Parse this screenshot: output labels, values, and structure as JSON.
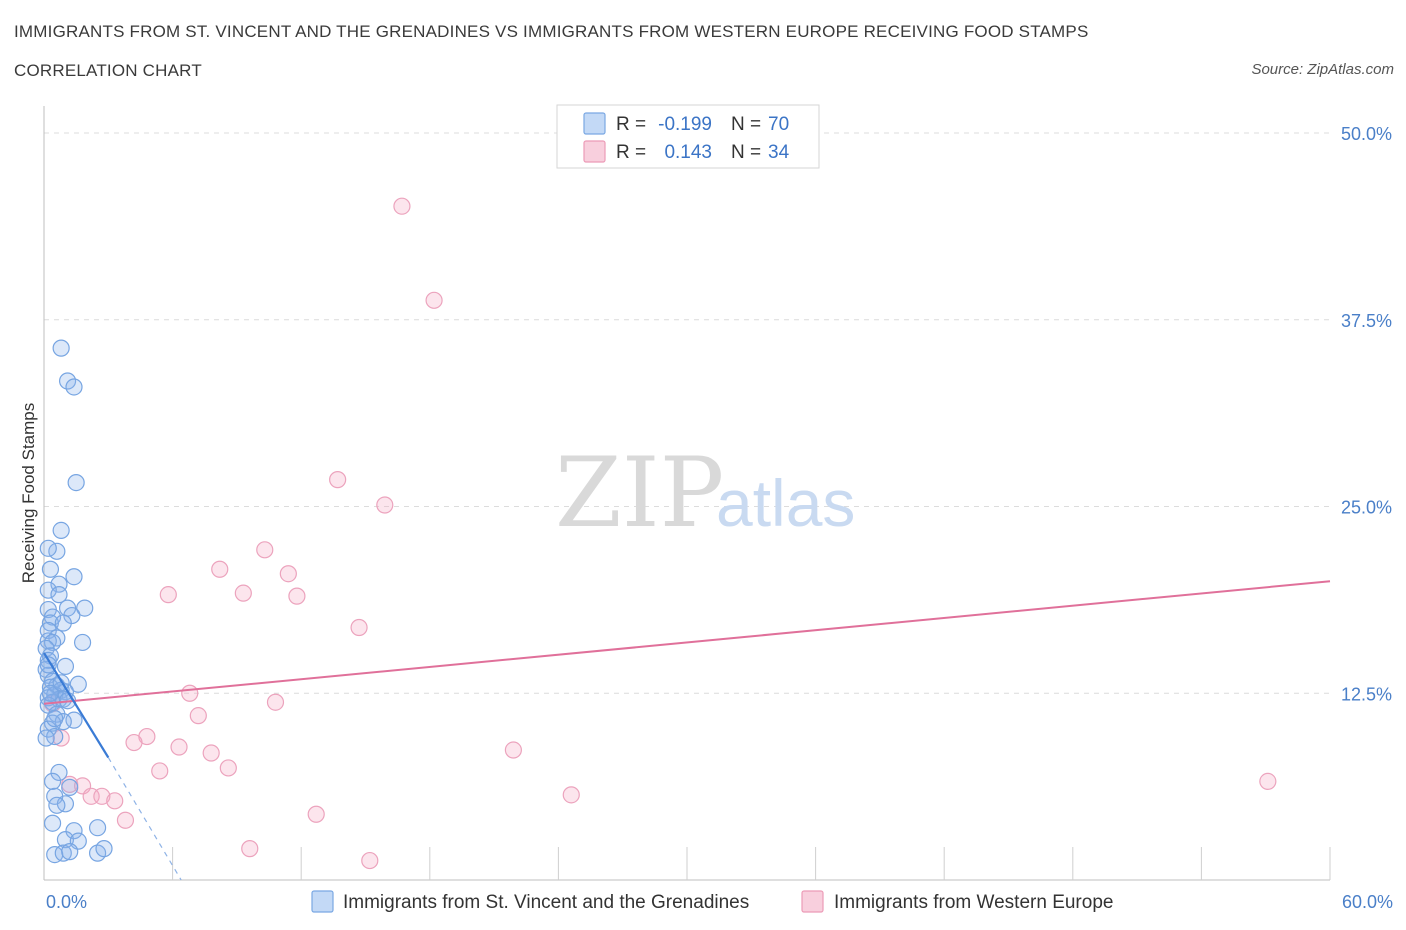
{
  "header": {
    "title": "IMMIGRANTS FROM ST. VINCENT AND THE GRENADINES VS IMMIGRANTS FROM WESTERN EUROPE RECEIVING FOOD STAMPS",
    "subtitle": "CORRELATION CHART",
    "source": "Source: ZipAtlas.com"
  },
  "watermark": {
    "zip": "ZIP",
    "atlas": "atlas"
  },
  "legend": {
    "rows": [
      {
        "r_label": "R =",
        "r_value": "-0.199",
        "n_label": "N =",
        "n_value": "70"
      },
      {
        "r_label": "R =",
        "r_value": "0.143",
        "n_label": "N =",
        "n_value": "34"
      }
    ]
  },
  "chart_data": {
    "type": "scatter",
    "title": "Immigrants from St. Vincent and the Grenadines vs Immigrants from Western Europe Receiving Food Stamps",
    "xlabel": "",
    "ylabel": "Receiving Food Stamps",
    "xlim": [
      0,
      60
    ],
    "ylim": [
      0,
      50
    ],
    "x_tick_labels": [
      "0.0%",
      "60.0%"
    ],
    "y_ticks": [
      12.5,
      25.0,
      37.5,
      50.0
    ],
    "y_tick_labels": [
      "12.5%",
      "25.0%",
      "37.5%",
      "50.0%"
    ],
    "grid": true,
    "colors": {
      "blue": "#6fa3e6",
      "pink": "#eb8fae",
      "blue_line": "#3a7bd5",
      "pink_line": "#e0709a"
    },
    "series": [
      {
        "name": "Immigrants from St. Vincent and the Grenadines",
        "color": "#6fa3e6",
        "trend": {
          "x0": 0,
          "y0": 15.2,
          "x1": 3.0,
          "y1": 8.2,
          "dash_to_x": 6.4,
          "dash_to_y": 0
        },
        "points": [
          [
            0.8,
            35.6
          ],
          [
            1.1,
            33.4
          ],
          [
            1.4,
            33.0
          ],
          [
            1.5,
            26.6
          ],
          [
            0.8,
            23.4
          ],
          [
            0.6,
            22.0
          ],
          [
            0.2,
            22.2
          ],
          [
            0.3,
            20.8
          ],
          [
            1.4,
            20.3
          ],
          [
            0.7,
            19.8
          ],
          [
            0.2,
            19.4
          ],
          [
            0.7,
            19.1
          ],
          [
            1.9,
            18.2
          ],
          [
            1.1,
            18.2
          ],
          [
            0.2,
            18.1
          ],
          [
            0.4,
            17.6
          ],
          [
            1.3,
            17.7
          ],
          [
            0.3,
            17.2
          ],
          [
            0.9,
            17.2
          ],
          [
            0.2,
            16.7
          ],
          [
            0.6,
            16.2
          ],
          [
            0.2,
            16.0
          ],
          [
            0.4,
            15.9
          ],
          [
            1.8,
            15.9
          ],
          [
            0.1,
            15.5
          ],
          [
            0.3,
            15.0
          ],
          [
            0.2,
            14.7
          ],
          [
            1.0,
            14.3
          ],
          [
            0.1,
            14.1
          ],
          [
            0.2,
            13.7
          ],
          [
            0.4,
            13.3
          ],
          [
            0.6,
            13.0
          ],
          [
            1.6,
            13.1
          ],
          [
            0.3,
            12.9
          ],
          [
            0.8,
            12.7
          ],
          [
            1.0,
            12.6
          ],
          [
            0.5,
            12.4
          ],
          [
            0.2,
            12.2
          ],
          [
            0.7,
            12.1
          ],
          [
            0.9,
            12.1
          ],
          [
            0.4,
            11.9
          ],
          [
            0.2,
            11.7
          ],
          [
            0.6,
            11.1
          ],
          [
            1.4,
            10.7
          ],
          [
            0.9,
            10.6
          ],
          [
            0.4,
            10.5
          ],
          [
            0.2,
            10.1
          ],
          [
            0.5,
            9.6
          ],
          [
            0.1,
            9.5
          ],
          [
            0.7,
            7.2
          ],
          [
            0.4,
            6.6
          ],
          [
            1.2,
            6.2
          ],
          [
            0.5,
            5.6
          ],
          [
            1.0,
            5.1
          ],
          [
            0.6,
            5.0
          ],
          [
            0.4,
            3.8
          ],
          [
            2.5,
            3.5
          ],
          [
            1.4,
            3.3
          ],
          [
            1.0,
            2.7
          ],
          [
            1.6,
            2.6
          ],
          [
            0.5,
            1.7
          ],
          [
            0.9,
            1.8
          ],
          [
            1.2,
            1.9
          ],
          [
            2.5,
            1.8
          ],
          [
            2.8,
            2.1
          ],
          [
            0.3,
            12.5
          ],
          [
            0.8,
            13.2
          ],
          [
            0.2,
            14.4
          ],
          [
            1.1,
            12.0
          ],
          [
            0.5,
            10.8
          ]
        ]
      },
      {
        "name": "Immigrants from Western Europe",
        "color": "#eb8fae",
        "trend": {
          "x0": 0,
          "y0": 11.8,
          "x1": 60,
          "y1": 20.0
        },
        "points": [
          [
            16.7,
            45.1
          ],
          [
            18.2,
            38.8
          ],
          [
            13.7,
            26.8
          ],
          [
            15.9,
            25.1
          ],
          [
            10.3,
            22.1
          ],
          [
            8.2,
            20.8
          ],
          [
            11.4,
            20.5
          ],
          [
            5.8,
            19.1
          ],
          [
            9.3,
            19.2
          ],
          [
            11.8,
            19.0
          ],
          [
            14.7,
            16.9
          ],
          [
            6.8,
            12.5
          ],
          [
            10.8,
            11.9
          ],
          [
            7.2,
            11.0
          ],
          [
            4.8,
            9.6
          ],
          [
            4.2,
            9.2
          ],
          [
            6.3,
            8.9
          ],
          [
            7.8,
            8.5
          ],
          [
            21.9,
            8.7
          ],
          [
            0.8,
            9.5
          ],
          [
            8.6,
            7.5
          ],
          [
            5.4,
            7.3
          ],
          [
            1.2,
            6.4
          ],
          [
            1.8,
            6.3
          ],
          [
            2.2,
            5.6
          ],
          [
            2.7,
            5.6
          ],
          [
            3.3,
            5.3
          ],
          [
            3.8,
            4.0
          ],
          [
            12.7,
            4.4
          ],
          [
            24.6,
            5.7
          ],
          [
            57.1,
            6.6
          ],
          [
            9.6,
            2.1
          ],
          [
            15.2,
            1.3
          ],
          [
            0.4,
            11.8
          ]
        ]
      }
    ]
  },
  "bottom_legend": {
    "items": [
      {
        "label": "Immigrants from St. Vincent and the Grenadines"
      },
      {
        "label": "Immigrants from Western Europe"
      }
    ]
  }
}
